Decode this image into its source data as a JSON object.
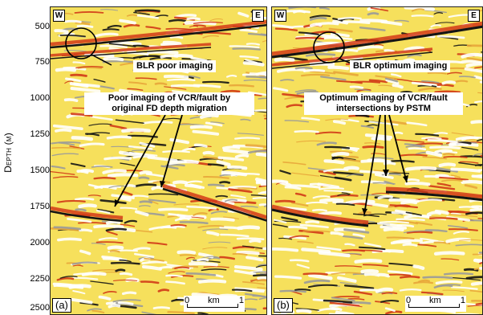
{
  "y_axis": {
    "label": "Depth (m)",
    "ticks": [
      "500",
      "750",
      "1000",
      "1250",
      "1500",
      "1750",
      "2000",
      "2250",
      "2500"
    ]
  },
  "panel_a": {
    "west": "W",
    "east": "E",
    "tag": "(a)",
    "callout_blr": "BLR poor imaging",
    "callout_fault_line1": "Poor  imaging of VCR/fault by",
    "callout_fault_line2": "original FD depth migration",
    "scale_start": "0",
    "scale_unit": "km",
    "scale_end": "1"
  },
  "panel_b": {
    "west": "W",
    "east": "E",
    "tag": "(b)",
    "callout_blr": "BLR optimum imaging",
    "callout_fault_line1": "Optimum imaging of VCR/fault",
    "callout_fault_line2": "intersections by PSTM",
    "scale_start": "0",
    "scale_unit": "km",
    "scale_end": "1"
  },
  "colors": {
    "background": "#f6e05c",
    "pos": "#d23a17",
    "neg": "#141414",
    "light": "#ffffff",
    "mid": "#9a9a9a"
  }
}
